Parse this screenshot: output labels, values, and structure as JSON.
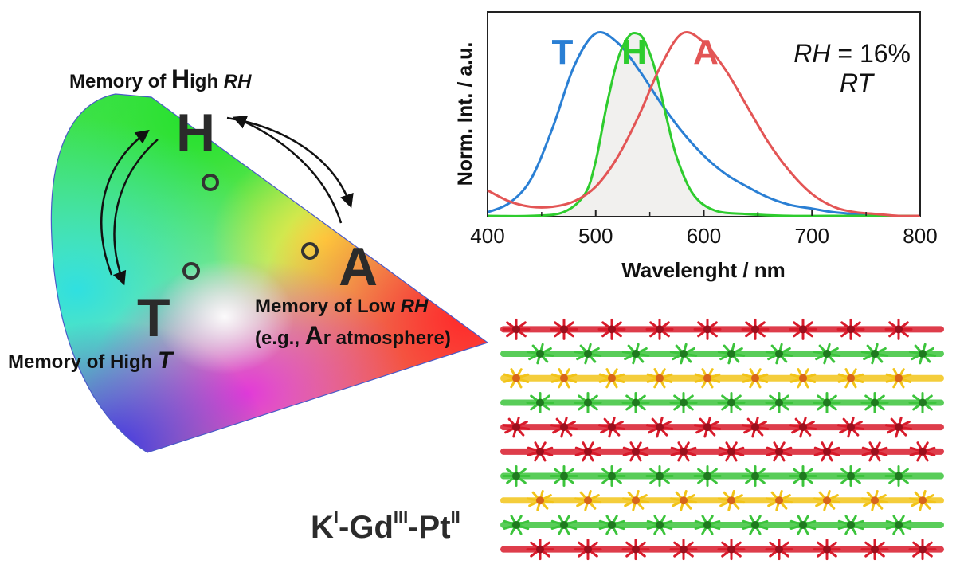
{
  "cie_diagram": {
    "points": [
      {
        "id": "H",
        "letter": "H",
        "label_first": "Memory of ",
        "label_cap": "H",
        "label_rest": "igh ",
        "label_italic": "RH"
      },
      {
        "id": "T",
        "letter": "T",
        "label": "Memory of High ",
        "label_italic": "T"
      },
      {
        "id": "A",
        "letter": "A",
        "label_first": "Memory of Low ",
        "label_italic": "RH",
        "label_line2_a": "(e.g., ",
        "label_line2_cap": "A",
        "label_line2_b": "r atmosphere)"
      }
    ]
  },
  "chart_data": {
    "type": "line",
    "xlabel": "Wavelenght / nm",
    "ylabel": "Norm. Int. / a.u.",
    "xlim": [
      400,
      800
    ],
    "ylim": [
      0,
      1.1
    ],
    "x_ticks": [
      "400",
      "500",
      "600",
      "700",
      "800"
    ],
    "grid": false,
    "annotations": {
      "line1_italic": "RH",
      "line1_rest": " = 16%",
      "line2_italic": "RT"
    },
    "series": [
      {
        "name": "T",
        "color": "#2a7fd4",
        "x": [
          400,
          420,
          440,
          460,
          480,
          500,
          520,
          540,
          560,
          580,
          600,
          620,
          640,
          660,
          680,
          700,
          720,
          740,
          760,
          780,
          800
        ],
        "y": [
          0.02,
          0.07,
          0.2,
          0.48,
          0.82,
          1.0,
          0.95,
          0.8,
          0.62,
          0.46,
          0.33,
          0.23,
          0.16,
          0.1,
          0.06,
          0.04,
          0.02,
          0.01,
          0.0,
          0.0,
          0.0
        ]
      },
      {
        "name": "H",
        "color": "#2ecc2e",
        "fill": "#f1f0ee",
        "x": [
          400,
          440,
          470,
          490,
          500,
          510,
          520,
          530,
          538,
          545,
          555,
          565,
          575,
          590,
          610,
          640,
          680,
          720,
          800
        ],
        "y": [
          0.0,
          0.0,
          0.02,
          0.12,
          0.3,
          0.6,
          0.85,
          0.98,
          1.0,
          0.96,
          0.8,
          0.55,
          0.32,
          0.12,
          0.03,
          0.01,
          0.0,
          0.0,
          0.0
        ]
      },
      {
        "name": "A",
        "color": "#e35555",
        "x": [
          400,
          420,
          440,
          460,
          480,
          500,
          520,
          540,
          560,
          580,
          600,
          620,
          640,
          660,
          680,
          700,
          720,
          740,
          760,
          780,
          800
        ],
        "y": [
          0.14,
          0.08,
          0.05,
          0.05,
          0.08,
          0.16,
          0.32,
          0.55,
          0.82,
          1.0,
          0.95,
          0.8,
          0.6,
          0.4,
          0.24,
          0.12,
          0.05,
          0.02,
          0.01,
          0.0,
          0.0
        ]
      }
    ]
  },
  "crystal": {
    "formula_K": "K",
    "formula_K_sup": "I",
    "formula_Gd": "-Gd",
    "formula_Gd_sup": "III",
    "formula_Pt": "-Pt",
    "formula_Pt_sup": "II",
    "layer_colors": [
      "#d81b2b",
      "#3cc43c",
      "#f2c419",
      "#3cc43c",
      "#d81b2b",
      "#d81b2b",
      "#3cc43c",
      "#f2c419",
      "#3cc43c",
      "#d81b2b"
    ]
  }
}
